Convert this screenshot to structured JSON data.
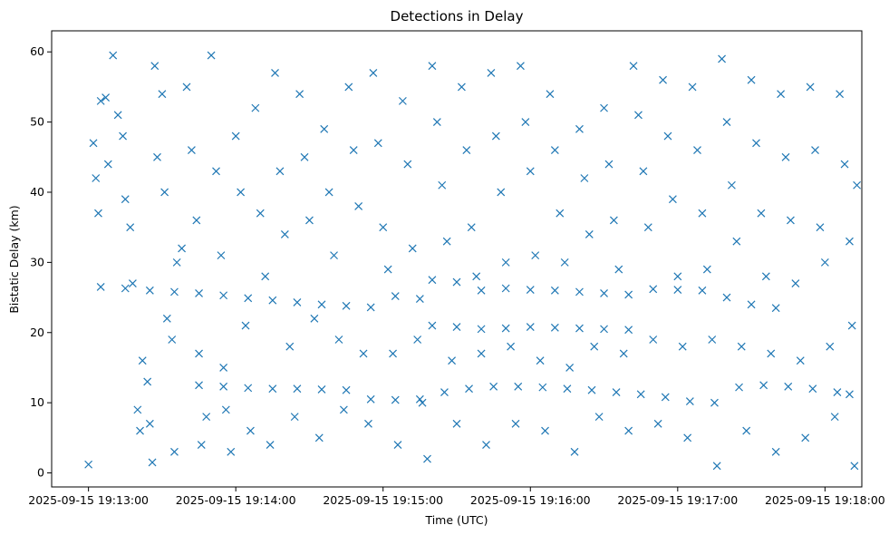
{
  "chart_data": {
    "type": "scatter",
    "title": "Detections in Delay",
    "xlabel": "Time (UTC)",
    "ylabel": "Bistatic Delay (km)",
    "x_unit": "seconds after 2025-09-15 19:13:00",
    "xlim": [
      -15,
      315
    ],
    "ylim": [
      -2,
      63
    ],
    "x_ticks": [
      0,
      60,
      120,
      180,
      240,
      300
    ],
    "x_tick_labels": [
      "2025-09-15 19:13:00",
      "2025-09-15 19:14:00",
      "2025-09-15 19:15:00",
      "2025-09-15 19:16:00",
      "2025-09-15 19:17:00",
      "2025-09-15 19:18:00"
    ],
    "y_ticks": [
      0,
      10,
      20,
      30,
      40,
      50,
      60
    ],
    "y_tick_labels": [
      "0",
      "10",
      "20",
      "30",
      "40",
      "50",
      "60"
    ],
    "marker": "x",
    "color": "#1f77b4",
    "tracks": [
      {
        "name": "upper track",
        "points": [
          [
            5,
            26.5
          ],
          [
            15,
            26.3
          ],
          [
            25,
            26.0
          ],
          [
            35,
            25.8
          ],
          [
            45,
            25.6
          ],
          [
            55,
            25.3
          ],
          [
            65,
            24.9
          ],
          [
            75,
            24.6
          ],
          [
            85,
            24.3
          ],
          [
            95,
            24.0
          ],
          [
            105,
            23.8
          ],
          [
            115,
            23.6
          ],
          [
            125,
            25.2
          ],
          [
            135,
            24.8
          ],
          [
            140,
            27.5
          ],
          [
            150,
            27.2
          ],
          [
            160,
            26.0
          ],
          [
            170,
            26.3
          ],
          [
            180,
            26.1
          ],
          [
            190,
            26.0
          ],
          [
            200,
            25.8
          ],
          [
            210,
            25.6
          ],
          [
            220,
            25.4
          ],
          [
            230,
            26.2
          ],
          [
            240,
            26.1
          ],
          [
            250,
            26.0
          ],
          [
            260,
            25.0
          ],
          [
            270,
            24.0
          ],
          [
            280,
            23.5
          ]
        ]
      },
      {
        "name": "lower track",
        "points": [
          [
            45,
            12.5
          ],
          [
            55,
            12.3
          ],
          [
            65,
            12.1
          ],
          [
            75,
            12.0
          ],
          [
            85,
            12.0
          ],
          [
            95,
            11.9
          ],
          [
            105,
            11.8
          ],
          [
            115,
            10.5
          ],
          [
            125,
            10.4
          ],
          [
            135,
            10.5
          ],
          [
            145,
            11.5
          ],
          [
            155,
            12.0
          ],
          [
            165,
            12.3
          ],
          [
            175,
            12.3
          ],
          [
            185,
            12.2
          ],
          [
            195,
            12.0
          ],
          [
            205,
            11.8
          ],
          [
            215,
            11.5
          ],
          [
            225,
            11.2
          ],
          [
            235,
            10.8
          ],
          [
            245,
            10.2
          ],
          [
            255,
            10.0
          ],
          [
            265,
            12.2
          ],
          [
            275,
            12.5
          ],
          [
            285,
            12.3
          ],
          [
            295,
            12.0
          ],
          [
            305,
            11.5
          ],
          [
            310,
            11.2
          ]
        ]
      },
      {
        "name": "middle track",
        "points": [
          [
            140,
            21.0
          ],
          [
            150,
            20.8
          ],
          [
            160,
            20.5
          ],
          [
            170,
            20.6
          ],
          [
            180,
            20.8
          ],
          [
            190,
            20.7
          ],
          [
            200,
            20.6
          ],
          [
            210,
            20.5
          ],
          [
            220,
            20.4
          ]
        ]
      }
    ],
    "scattered_points": [
      [
        0,
        1.2
      ],
      [
        2,
        47
      ],
      [
        3,
        42
      ],
      [
        4,
        37
      ],
      [
        5,
        53
      ],
      [
        7,
        53.5
      ],
      [
        8,
        44
      ],
      [
        10,
        59.5
      ],
      [
        12,
        51
      ],
      [
        14,
        48
      ],
      [
        15,
        39
      ],
      [
        17,
        35
      ],
      [
        18,
        27
      ],
      [
        20,
        9
      ],
      [
        21,
        6
      ],
      [
        22,
        16
      ],
      [
        24,
        13
      ],
      [
        25,
        7
      ],
      [
        26,
        1.5
      ],
      [
        27,
        58
      ],
      [
        28,
        45
      ],
      [
        30,
        54
      ],
      [
        31,
        40
      ],
      [
        32,
        22
      ],
      [
        34,
        19
      ],
      [
        35,
        3
      ],
      [
        36,
        30
      ],
      [
        38,
        32
      ],
      [
        40,
        55
      ],
      [
        42,
        46
      ],
      [
        44,
        36
      ],
      [
        45,
        17
      ],
      [
        46,
        4
      ],
      [
        48,
        8
      ],
      [
        50,
        59.5
      ],
      [
        52,
        43
      ],
      [
        54,
        31
      ],
      [
        55,
        15
      ],
      [
        56,
        9
      ],
      [
        58,
        3
      ],
      [
        60,
        48
      ],
      [
        62,
        40
      ],
      [
        64,
        21
      ],
      [
        66,
        6
      ],
      [
        68,
        52
      ],
      [
        70,
        37
      ],
      [
        72,
        28
      ],
      [
        74,
        4
      ],
      [
        76,
        57
      ],
      [
        78,
        43
      ],
      [
        80,
        34
      ],
      [
        82,
        18
      ],
      [
        84,
        8
      ],
      [
        86,
        54
      ],
      [
        88,
        45
      ],
      [
        90,
        36
      ],
      [
        92,
        22
      ],
      [
        94,
        5
      ],
      [
        96,
        49
      ],
      [
        98,
        40
      ],
      [
        100,
        31
      ],
      [
        102,
        19
      ],
      [
        104,
        9
      ],
      [
        106,
        55
      ],
      [
        108,
        46
      ],
      [
        110,
        38
      ],
      [
        112,
        17
      ],
      [
        114,
        7
      ],
      [
        116,
        57
      ],
      [
        118,
        47
      ],
      [
        120,
        35
      ],
      [
        122,
        29
      ],
      [
        124,
        17
      ],
      [
        126,
        4
      ],
      [
        128,
        53
      ],
      [
        130,
        44
      ],
      [
        132,
        32
      ],
      [
        134,
        19
      ],
      [
        136,
        10
      ],
      [
        138,
        2
      ],
      [
        140,
        58
      ],
      [
        142,
        50
      ],
      [
        144,
        41
      ],
      [
        146,
        33
      ],
      [
        148,
        16
      ],
      [
        150,
        7
      ],
      [
        152,
        55
      ],
      [
        154,
        46
      ],
      [
        156,
        35
      ],
      [
        158,
        28
      ],
      [
        160,
        17
      ],
      [
        162,
        4
      ],
      [
        164,
        57
      ],
      [
        166,
        48
      ],
      [
        168,
        40
      ],
      [
        170,
        30
      ],
      [
        172,
        18
      ],
      [
        174,
        7
      ],
      [
        176,
        58
      ],
      [
        178,
        50
      ],
      [
        180,
        43
      ],
      [
        182,
        31
      ],
      [
        184,
        16
      ],
      [
        186,
        6
      ],
      [
        188,
        54
      ],
      [
        190,
        46
      ],
      [
        192,
        37
      ],
      [
        194,
        30
      ],
      [
        196,
        15
      ],
      [
        198,
        3
      ],
      [
        200,
        49
      ],
      [
        202,
        42
      ],
      [
        204,
        34
      ],
      [
        206,
        18
      ],
      [
        208,
        8
      ],
      [
        210,
        52
      ],
      [
        212,
        44
      ],
      [
        214,
        36
      ],
      [
        216,
        29
      ],
      [
        218,
        17
      ],
      [
        220,
        6
      ],
      [
        222,
        58
      ],
      [
        224,
        51
      ],
      [
        226,
        43
      ],
      [
        228,
        35
      ],
      [
        230,
        19
      ],
      [
        232,
        7
      ],
      [
        234,
        56
      ],
      [
        236,
        48
      ],
      [
        238,
        39
      ],
      [
        240,
        28
      ],
      [
        242,
        18
      ],
      [
        244,
        5
      ],
      [
        246,
        55
      ],
      [
        248,
        46
      ],
      [
        250,
        37
      ],
      [
        252,
        29
      ],
      [
        254,
        19
      ],
      [
        256,
        1
      ],
      [
        258,
        59
      ],
      [
        260,
        50
      ],
      [
        262,
        41
      ],
      [
        264,
        33
      ],
      [
        266,
        18
      ],
      [
        268,
        6
      ],
      [
        270,
        56
      ],
      [
        272,
        47
      ],
      [
        274,
        37
      ],
      [
        276,
        28
      ],
      [
        278,
        17
      ],
      [
        280,
        3
      ],
      [
        282,
        54
      ],
      [
        284,
        45
      ],
      [
        286,
        36
      ],
      [
        288,
        27
      ],
      [
        290,
        16
      ],
      [
        292,
        5
      ],
      [
        294,
        55
      ],
      [
        296,
        46
      ],
      [
        298,
        35
      ],
      [
        300,
        30
      ],
      [
        302,
        18
      ],
      [
        304,
        8
      ],
      [
        306,
        54
      ],
      [
        308,
        44
      ],
      [
        310,
        33
      ],
      [
        311,
        21
      ],
      [
        312,
        1
      ],
      [
        313,
        41
      ]
    ]
  }
}
